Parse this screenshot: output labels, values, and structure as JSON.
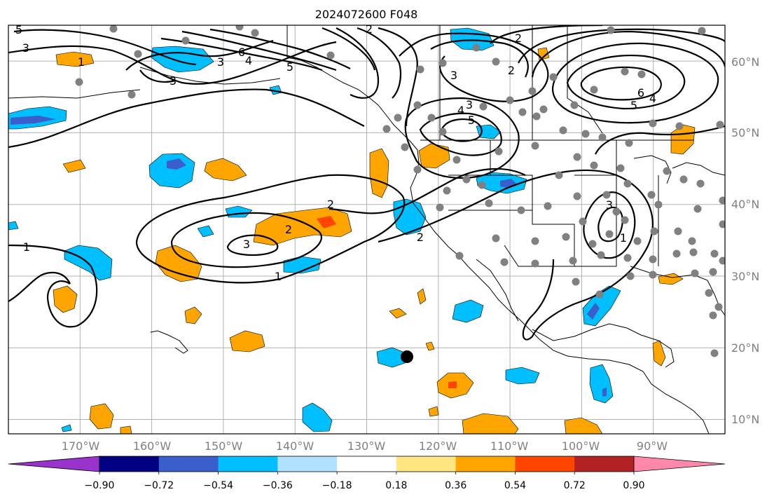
{
  "title": "2024072600 F048",
  "lat_labels": [
    "60°N",
    "50°N",
    "40°N",
    "30°N",
    "20°N",
    "10°N"
  ],
  "lon_labels": [
    "170°W",
    "160°W",
    "150°W",
    "140°W",
    "130°W",
    "120°W",
    "110°W",
    "100°W",
    "90°W"
  ],
  "colorbar": {
    "colors": [
      "#9933cc",
      "#000080",
      "#3a5fcd",
      "#00bfff",
      "#b0e2ff",
      "#ffffff",
      "#ffe680",
      "#ffa500",
      "#ff4500",
      "#b22222",
      "#ff88aa"
    ],
    "ticks": [
      "−0.90",
      "−0.72",
      "−0.54",
      "−0.36",
      "−0.18",
      "0.18",
      "0.36",
      "0.54",
      "0.72",
      "0.90"
    ]
  },
  "contour_labels": {
    "pac_2": "2",
    "pac_3": "3",
    "pac_2b": "2",
    "pac_1": "1",
    "w_1": "1",
    "nw_3": "3",
    "nw_3b": "3",
    "nw_5": "5",
    "ak_6": "6",
    "ak_4": "4",
    "ak_3": "3",
    "ak_5": "5",
    "ak_2": "2",
    "can_2": "2",
    "can_3": "3",
    "can_2b": "2",
    "can_6": "6",
    "can_4": "4",
    "can_5": "5",
    "nv_3": "3",
    "nv_4": "4",
    "nv_5": "5",
    "ca_2": "2",
    "us_3": "3",
    "us_1": "1",
    "aleut_1": "1"
  },
  "chart_data": {
    "type": "map-contour",
    "title": "2024072600 F048",
    "projection": "cylindrical",
    "lon_range": [
      -180,
      -80
    ],
    "lat_range": [
      8,
      65
    ],
    "contour_levels": [
      1,
      2,
      3,
      4,
      5,
      6
    ],
    "colorbar_levels": [
      -0.9,
      -0.72,
      -0.54,
      -0.36,
      -0.18,
      0.18,
      0.36,
      0.54,
      0.72,
      0.9
    ],
    "station_marker": {
      "lon": -124.8,
      "lat": 18.8
    }
  }
}
